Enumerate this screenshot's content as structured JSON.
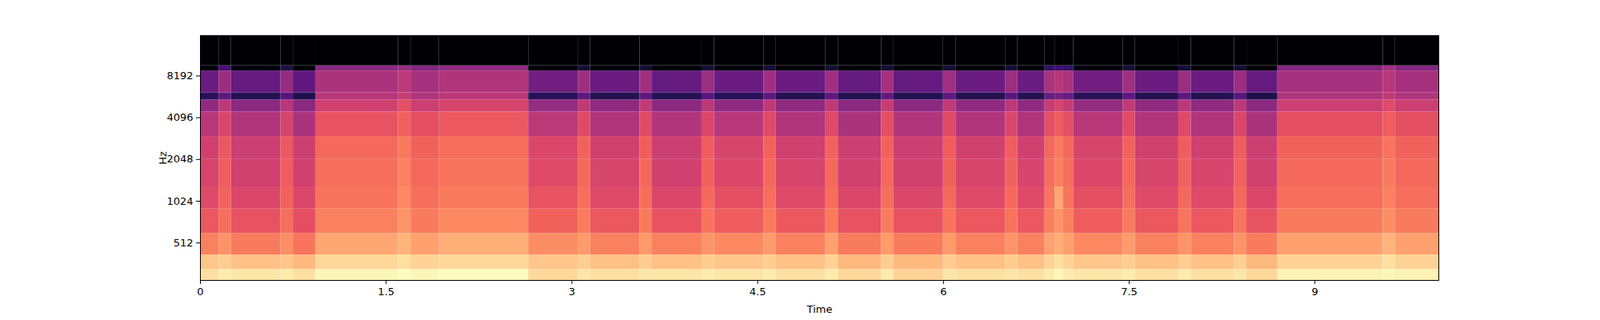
{
  "chart_data": {
    "type": "heatmap",
    "x_label": "Time",
    "y_label": "Hz",
    "xlim": [
      0,
      10
    ],
    "ylim": [
      275,
      16000
    ],
    "xticks": [
      0,
      1.5,
      3,
      4.5,
      6,
      7.5,
      9
    ],
    "yticks": [
      512,
      1024,
      2048,
      4096,
      8192
    ],
    "log": "y",
    "x_edges": [
      0,
      0.15,
      0.25,
      0.65,
      0.75,
      0.93,
      1.6,
      1.7,
      1.93,
      2.65,
      3.05,
      3.15,
      3.55,
      3.65,
      4.05,
      4.15,
      4.55,
      4.65,
      5.05,
      5.15,
      5.5,
      5.6,
      6.0,
      6.1,
      6.5,
      6.6,
      6.82,
      6.9,
      6.97,
      7.05,
      7.45,
      7.55,
      7.9,
      8.0,
      8.35,
      8.45,
      8.7,
      9.55,
      9.65,
      10
    ],
    "y_edges": [
      275,
      330,
      420,
      600,
      900,
      1300,
      2048,
      3000,
      4500,
      5500,
      6200,
      8900,
      9700,
      16000
    ],
    "cells": [
      [
        -9,
        -13,
        -24,
        -31,
        -34,
        -36,
        -37,
        -42,
        -49,
        -68,
        -56,
        -78,
        -80
      ],
      [
        -7,
        -12,
        -21,
        -27,
        -29,
        -30,
        -31,
        -35,
        -41,
        -58,
        -47,
        -62,
        -80
      ],
      [
        -8,
        -14,
        -25,
        -32,
        -35,
        -37,
        -38,
        -43,
        -50,
        -69,
        -57,
        -78,
        -80
      ],
      [
        -7,
        -13,
        -22,
        -27,
        -29,
        -30,
        -31,
        -36,
        -42,
        -60,
        -48,
        -70,
        -80
      ],
      [
        -9,
        -15,
        -26,
        -33,
        -35,
        -37,
        -38,
        -44,
        -50,
        -70,
        -58,
        -79,
        -80
      ],
      [
        -5,
        -10,
        -18,
        -24,
        -26,
        -27,
        -28,
        -32,
        -37,
        -42,
        -44,
        -50,
        -80
      ],
      [
        -4,
        -9,
        -16,
        -21,
        -23,
        -24,
        -25,
        -29,
        -33,
        -39,
        -41,
        -47,
        -80
      ],
      [
        -5,
        -11,
        -19,
        -25,
        -27,
        -28,
        -29,
        -33,
        -38,
        -43,
        -45,
        -51,
        -80
      ],
      [
        -4,
        -10,
        -17,
        -23,
        -25,
        -26,
        -27,
        -31,
        -36,
        -41,
        -43,
        -49,
        -80
      ],
      [
        -10,
        -13,
        -22,
        -29,
        -32,
        -34,
        -35,
        -41,
        -48,
        -68,
        -55,
        -78,
        -80
      ],
      [
        -8,
        -12,
        -20,
        -25,
        -27,
        -28,
        -29,
        -34,
        -40,
        -58,
        -46,
        -72,
        -80
      ],
      [
        -9,
        -14,
        -24,
        -31,
        -34,
        -36,
        -37,
        -43,
        -49,
        -69,
        -56,
        -78,
        -80
      ],
      [
        -8,
        -12,
        -20,
        -25,
        -27,
        -28,
        -30,
        -34,
        -40,
        -58,
        -46,
        -72,
        -80
      ],
      [
        -8,
        -14,
        -24,
        -32,
        -35,
        -37,
        -38,
        -43,
        -50,
        -69,
        -57,
        -79,
        -80
      ],
      [
        -7,
        -12,
        -21,
        -26,
        -28,
        -29,
        -30,
        -35,
        -41,
        -59,
        -47,
        -72,
        -80
      ],
      [
        -8,
        -13,
        -23,
        -30,
        -33,
        -35,
        -36,
        -42,
        -49,
        -68,
        -56,
        -78,
        -80
      ],
      [
        -7,
        -12,
        -20,
        -25,
        -27,
        -28,
        -29,
        -34,
        -40,
        -58,
        -46,
        -72,
        -80
      ],
      [
        -9,
        -14,
        -24,
        -31,
        -34,
        -36,
        -37,
        -43,
        -49,
        -69,
        -56,
        -79,
        -80
      ],
      [
        -7,
        -11,
        -19,
        -25,
        -27,
        -28,
        -29,
        -34,
        -40,
        -58,
        -46,
        -72,
        -80
      ],
      [
        -10,
        -15,
        -25,
        -32,
        -35,
        -37,
        -38,
        -44,
        -50,
        -69,
        -57,
        -79,
        -80
      ],
      [
        -7,
        -12,
        -20,
        -25,
        -27,
        -28,
        -29,
        -33,
        -39,
        -57,
        -45,
        -72,
        -80
      ],
      [
        -11,
        -15,
        -25,
        -32,
        -35,
        -37,
        -38,
        -43,
        -50,
        -69,
        -57,
        -79,
        -80
      ],
      [
        -8,
        -12,
        -20,
        -26,
        -28,
        -29,
        -30,
        -34,
        -40,
        -58,
        -46,
        -72,
        -80
      ],
      [
        -9,
        -14,
        -24,
        -31,
        -34,
        -36,
        -37,
        -43,
        -49,
        -69,
        -56,
        -79,
        -80
      ],
      [
        -8,
        -12,
        -21,
        -26,
        -28,
        -29,
        -30,
        -35,
        -41,
        -59,
        -47,
        -72,
        -80
      ],
      [
        -9,
        -14,
        -24,
        -31,
        -34,
        -36,
        -37,
        -43,
        -49,
        -69,
        -56,
        -79,
        -80
      ],
      [
        -7,
        -11,
        -19,
        -24,
        -26,
        -27,
        -28,
        -33,
        -39,
        -56,
        -44,
        -66,
        -80
      ],
      [
        -5,
        -9,
        -17,
        -21,
        -18,
        -24,
        -25,
        -30,
        -36,
        -54,
        -42,
        -64,
        -80
      ],
      [
        -7,
        -11,
        -19,
        -24,
        -26,
        -27,
        -28,
        -33,
        -39,
        -56,
        -44,
        -66,
        -80
      ],
      [
        -8,
        -13,
        -23,
        -30,
        -33,
        -35,
        -36,
        -42,
        -48,
        -68,
        -55,
        -78,
        -80
      ],
      [
        -7,
        -12,
        -20,
        -25,
        -27,
        -28,
        -29,
        -34,
        -40,
        -58,
        -46,
        -72,
        -80
      ],
      [
        -9,
        -14,
        -24,
        -31,
        -34,
        -36,
        -37,
        -43,
        -49,
        -69,
        -56,
        -79,
        -80
      ],
      [
        -7,
        -12,
        -21,
        -26,
        -28,
        -29,
        -30,
        -34,
        -41,
        -58,
        -47,
        -72,
        -80
      ],
      [
        -9,
        -14,
        -24,
        -31,
        -34,
        -36,
        -37,
        -43,
        -49,
        -69,
        -56,
        -79,
        -80
      ],
      [
        -8,
        -12,
        -21,
        -26,
        -28,
        -29,
        -30,
        -35,
        -41,
        -59,
        -47,
        -72,
        -80
      ],
      [
        -10,
        -15,
        -25,
        -32,
        -35,
        -37,
        -38,
        -44,
        -50,
        -70,
        -57,
        -79,
        -80
      ],
      [
        -6,
        -11,
        -19,
        -25,
        -27,
        -28,
        -29,
        -33,
        -38,
        -43,
        -45,
        -51,
        -80
      ],
      [
        -5,
        -9,
        -16,
        -22,
        -24,
        -25,
        -26,
        -30,
        -34,
        -40,
        -42,
        -46,
        -80
      ],
      [
        -6,
        -11,
        -19,
        -25,
        -27,
        -28,
        -29,
        -33,
        -38,
        -43,
        -45,
        -51,
        -80
      ]
    ]
  }
}
